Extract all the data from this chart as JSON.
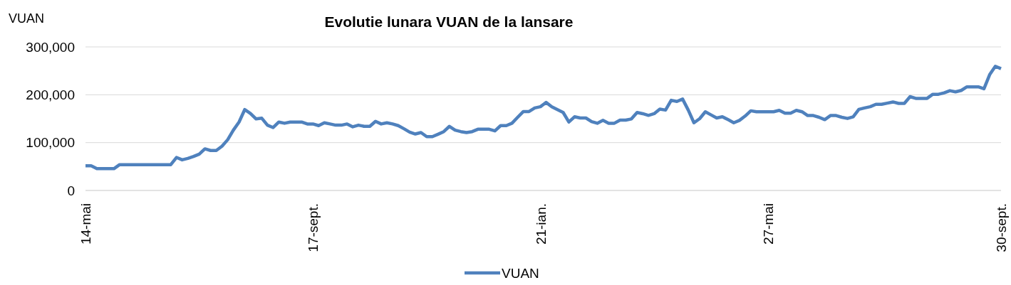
{
  "chart_data": {
    "type": "line",
    "title": "Evolutie lunara VUAN de la lansare",
    "ylabel": "VUAN",
    "categories": [
      "14-mai",
      null,
      null,
      null,
      null,
      null,
      null,
      null,
      null,
      null,
      null,
      null,
      null,
      null,
      null,
      null,
      null,
      null,
      null,
      null,
      null,
      null,
      null,
      null,
      null,
      null,
      null,
      null,
      null,
      null,
      null,
      null,
      null,
      null,
      null,
      null,
      null,
      null,
      null,
      null,
      "17-sept.",
      null,
      null,
      null,
      null,
      null,
      null,
      null,
      null,
      null,
      null,
      null,
      null,
      null,
      null,
      null,
      null,
      null,
      null,
      null,
      null,
      null,
      null,
      null,
      null,
      null,
      null,
      null,
      null,
      null,
      null,
      null,
      null,
      null,
      null,
      null,
      null,
      null,
      null,
      null,
      "21-ian.",
      null,
      null,
      null,
      null,
      null,
      null,
      null,
      null,
      null,
      null,
      null,
      null,
      null,
      null,
      null,
      null,
      null,
      null,
      null,
      null,
      null,
      null,
      null,
      null,
      null,
      null,
      null,
      null,
      null,
      null,
      null,
      null,
      null,
      null,
      null,
      null,
      null,
      null,
      null,
      "27-mai",
      null,
      null,
      null,
      null,
      null,
      null,
      null,
      null,
      null,
      null,
      null,
      null,
      null,
      null,
      null,
      null,
      null,
      null,
      null,
      null,
      null,
      null,
      null,
      null,
      null,
      null,
      null,
      null,
      null,
      null,
      null,
      null,
      null,
      null,
      null,
      null,
      null,
      null,
      null,
      null,
      "30-sept."
    ],
    "series": [
      {
        "name": "VUAN",
        "color": "#4f81bd",
        "values": [
          51500,
          51500,
          45500,
          45500,
          45500,
          45500,
          54000,
          54000,
          54000,
          54000,
          54000,
          54000,
          54000,
          54000,
          54000,
          54000,
          69000,
          64000,
          67000,
          71000,
          76000,
          87000,
          83500,
          83500,
          92500,
          106000,
          126000,
          143000,
          169000,
          161000,
          149500,
          151000,
          136500,
          131500,
          143000,
          140500,
          143000,
          143000,
          143000,
          139000,
          139000,
          135500,
          141500,
          139000,
          136500,
          136500,
          139000,
          133000,
          136500,
          134000,
          134000,
          144500,
          139000,
          141500,
          139000,
          135500,
          129000,
          122000,
          118000,
          121000,
          112500,
          112500,
          117500,
          123000,
          134000,
          126000,
          123000,
          121000,
          123000,
          128000,
          128000,
          128000,
          124500,
          135500,
          135500,
          140500,
          153000,
          165000,
          165000,
          172500,
          175000,
          184000,
          175000,
          169000,
          163000,
          143000,
          154000,
          151500,
          151500,
          144000,
          140500,
          146500,
          140500,
          140500,
          147000,
          147000,
          149500,
          163000,
          160500,
          157000,
          160500,
          170000,
          168000,
          188500,
          186000,
          191000,
          168000,
          141500,
          150000,
          164500,
          158000,
          151500,
          154000,
          148000,
          141500,
          146500,
          155500,
          166500,
          164500,
          164500,
          164500,
          164500,
          167500,
          161500,
          161500,
          167500,
          164500,
          156500,
          156500,
          153000,
          148000,
          156500,
          156500,
          153000,
          150500,
          154000,
          169500,
          172500,
          175000,
          180000,
          180000,
          182500,
          185000,
          182000,
          182000,
          196000,
          192500,
          192500,
          192500,
          201000,
          201000,
          204000,
          208500,
          206000,
          209000,
          216500,
          216500,
          216500,
          212500,
          242000,
          259500,
          254500
        ]
      }
    ],
    "ylim": [
      0,
      300000
    ],
    "yticks": [
      {
        "value": 0,
        "label": "0"
      },
      {
        "value": 100000,
        "label": "100,000"
      },
      {
        "value": 200000,
        "label": "200,000"
      },
      {
        "value": 300000,
        "label": "300,000"
      }
    ],
    "grid": "y",
    "legend": "bottom",
    "marker": "none",
    "line_style": "solid"
  }
}
